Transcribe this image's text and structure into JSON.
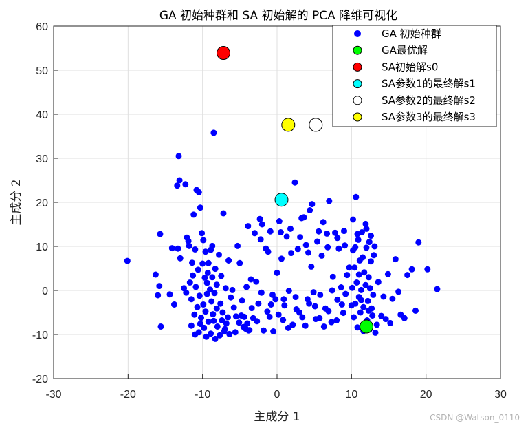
{
  "chart_data": {
    "type": "scatter",
    "title": "GA 初始种群和 SA 初始解的 PCA 降维可视化",
    "xlabel": "主成分 1",
    "ylabel": "主成分 2",
    "xlim": [
      -30,
      30
    ],
    "ylim": [
      -20,
      60
    ],
    "xticks": [
      "-30",
      "-20",
      "-10",
      "0",
      "10",
      "20",
      "30"
    ],
    "yticks": [
      "-20",
      "-10",
      "0",
      "10",
      "20",
      "30",
      "40",
      "50",
      "60"
    ],
    "grid": true,
    "legend_position": "top-right",
    "colors": {
      "ga_population": "#0000ff",
      "ga_best": "#00ff00",
      "sa_init": "#ff0000",
      "sa_s1": "#00ffff",
      "sa_s2": "#ffffff",
      "sa_s3": "#ffff00"
    },
    "series": [
      {
        "name": "GA 初始种群",
        "marker": "dot",
        "points": [
          [
            -20.1,
            6.7
          ],
          [
            -16.3,
            3.6
          ],
          [
            -16.0,
            -1.1
          ],
          [
            -15.8,
            1.0
          ],
          [
            -15.6,
            -8.2
          ],
          [
            -15.7,
            12.8
          ],
          [
            -14.4,
            -0.9
          ],
          [
            -14.1,
            9.6
          ],
          [
            -13.8,
            -3.2
          ],
          [
            -13.4,
            23.8
          ],
          [
            -13.1,
            25.0
          ],
          [
            -13.2,
            30.5
          ],
          [
            -13.0,
            7.3
          ],
          [
            -13.3,
            9.5
          ],
          [
            -12.5,
            0.5
          ],
          [
            -12.3,
            24.1
          ],
          [
            -12.1,
            12.0
          ],
          [
            -11.9,
            11.2
          ],
          [
            -11.8,
            10.1
          ],
          [
            -11.5,
            -2.0
          ],
          [
            -12.2,
            -0.5
          ],
          [
            -11.4,
            6.3
          ],
          [
            -11.2,
            17.2
          ],
          [
            -11.0,
            9.3
          ],
          [
            -10.8,
            22.8
          ],
          [
            -10.5,
            22.3
          ],
          [
            -10.3,
            18.8
          ],
          [
            -10.1,
            13.0
          ],
          [
            -9.9,
            11.4
          ],
          [
            -9.6,
            8.8
          ],
          [
            -9.4,
            1.7
          ],
          [
            -9.2,
            6.2
          ],
          [
            -8.9,
            9.2
          ],
          [
            -8.7,
            10.1
          ],
          [
            -8.5,
            35.8
          ],
          [
            -8.3,
            4.9
          ],
          [
            -8.1,
            1.3
          ],
          [
            -7.8,
            8.1
          ],
          [
            -7.5,
            3.3
          ],
          [
            -7.2,
            17.5
          ],
          [
            -6.9,
            0.5
          ],
          [
            -6.5,
            6.8
          ],
          [
            -6.2,
            -1.6
          ],
          [
            -6.0,
            0.1
          ],
          [
            -5.8,
            -3.9
          ],
          [
            -5.5,
            -5.9
          ],
          [
            -5.3,
            10.1
          ],
          [
            -5.0,
            6.2
          ],
          [
            -4.8,
            -5.7
          ],
          [
            -4.5,
            -8.3
          ],
          [
            -4.2,
            -8.7
          ],
          [
            -4.0,
            -7.5
          ],
          [
            -3.7,
            -9.0
          ],
          [
            -3.5,
            2.5
          ],
          [
            -3.2,
            -6.3
          ],
          [
            -3.0,
            13.0
          ],
          [
            -2.8,
            2.0
          ],
          [
            -2.5,
            -3.0
          ],
          [
            -2.3,
            16.2
          ],
          [
            -2.0,
            15.0
          ],
          [
            -1.8,
            -9.1
          ],
          [
            -1.5,
            9.5
          ],
          [
            -1.2,
            8.8
          ],
          [
            -1.0,
            -6.0
          ],
          [
            -0.8,
            -3.2
          ],
          [
            -0.5,
            -9.3
          ],
          [
            -0.2,
            -2.0
          ],
          [
            0.0,
            4.0
          ],
          [
            0.3,
            15.7
          ],
          [
            0.5,
            13.2
          ],
          [
            0.8,
            -6.7
          ],
          [
            1.0,
            -3.4
          ],
          [
            1.3,
            12.2
          ],
          [
            1.6,
            -0.1
          ],
          [
            1.9,
            8.5
          ],
          [
            2.1,
            -7.8
          ],
          [
            2.4,
            24.5
          ],
          [
            2.6,
            -4.3
          ],
          [
            2.8,
            9.4
          ],
          [
            3.1,
            12.1
          ],
          [
            3.4,
            -6.1
          ],
          [
            3.6,
            16.6
          ],
          [
            3.9,
            10.3
          ],
          [
            4.1,
            -2.0
          ],
          [
            4.4,
            18.2
          ],
          [
            4.6,
            5.4
          ],
          [
            4.9,
            -0.4
          ],
          [
            5.1,
            -3.6
          ],
          [
            5.4,
            11.1
          ],
          [
            5.7,
            -6.3
          ],
          [
            6.0,
            7.9
          ],
          [
            6.2,
            15.5
          ],
          [
            6.5,
            -4.1
          ],
          [
            6.8,
            9.8
          ],
          [
            7.0,
            20.3
          ],
          [
            7.3,
            -7.2
          ],
          [
            7.5,
            3.1
          ],
          [
            7.8,
            13.1
          ],
          [
            8.1,
            -2.1
          ],
          [
            8.3,
            9.5
          ],
          [
            8.6,
            0.7
          ],
          [
            8.9,
            -5.1
          ],
          [
            9.1,
            10.2
          ],
          [
            9.4,
            3.5
          ],
          [
            9.7,
            5.2
          ],
          [
            10.0,
            -3.4
          ],
          [
            10.2,
            16.1
          ],
          [
            10.5,
            9.8
          ],
          [
            10.6,
            21.2
          ],
          [
            10.8,
            12.8
          ],
          [
            11.0,
            3.6
          ],
          [
            11.3,
            -2.2
          ],
          [
            11.5,
            7.5
          ],
          [
            11.8,
            -7.4
          ],
          [
            12.0,
            14.0
          ],
          [
            12.3,
            -4.6
          ],
          [
            12.6,
            6.6
          ],
          [
            12.9,
            -1.0
          ],
          [
            13.1,
            10.0
          ],
          [
            13.4,
            -7.8
          ],
          [
            13.6,
            1.9
          ],
          [
            14.0,
            -5.8
          ],
          [
            14.3,
            -1.4
          ],
          [
            14.6,
            -6.5
          ],
          [
            14.9,
            3.7
          ],
          [
            15.2,
            -7.4
          ],
          [
            15.5,
            -1.9
          ],
          [
            15.9,
            7.1
          ],
          [
            16.3,
            -0.3
          ],
          [
            16.6,
            -5.5
          ],
          [
            17.1,
            -6.3
          ],
          [
            17.5,
            3.5
          ],
          [
            18.1,
            4.8
          ],
          [
            18.6,
            -4.6
          ],
          [
            19.0,
            10.9
          ],
          [
            20.2,
            4.8
          ],
          [
            21.5,
            0.3
          ],
          [
            -11.5,
            -8.0
          ],
          [
            -11.0,
            -10.0
          ],
          [
            -10.5,
            -9.5
          ],
          [
            -10.2,
            -6.2
          ],
          [
            -9.8,
            -8.5
          ],
          [
            -9.5,
            -10.5
          ],
          [
            -9.2,
            -7.1
          ],
          [
            -8.9,
            -9.8
          ],
          [
            -8.6,
            -5.4
          ],
          [
            -8.3,
            -11.0
          ],
          [
            -8.0,
            -8.2
          ],
          [
            -7.7,
            -10.2
          ],
          [
            -7.4,
            -6.8
          ],
          [
            -7.1,
            -9.3
          ],
          [
            -6.8,
            -7.5
          ],
          [
            -9.9,
            -3.2
          ],
          [
            -10.4,
            -1.2
          ],
          [
            -8.8,
            -2.5
          ],
          [
            -8.1,
            -4.1
          ],
          [
            -7.6,
            -3.0
          ],
          [
            -10.9,
            0.8
          ],
          [
            -9.7,
            2.9
          ],
          [
            -9.0,
            0.2
          ],
          [
            -8.4,
            -0.6
          ],
          [
            -11.3,
            3.4
          ],
          [
            -10.6,
            4.7
          ],
          [
            -10.0,
            6.1
          ],
          [
            -9.3,
            4.0
          ],
          [
            -8.7,
            3.0
          ],
          [
            -11.7,
            1.8
          ],
          [
            10.3,
            -6.1
          ],
          [
            10.8,
            -8.4
          ],
          [
            11.2,
            -5.0
          ],
          [
            11.6,
            -9.2
          ],
          [
            12.1,
            -6.8
          ],
          [
            12.4,
            -8.9
          ],
          [
            12.8,
            -5.7
          ],
          [
            13.2,
            -9.6
          ],
          [
            10.5,
            -3.0
          ],
          [
            11.0,
            -1.5
          ],
          [
            11.6,
            -3.8
          ],
          [
            12.2,
            -2.4
          ],
          [
            12.7,
            -4.1
          ],
          [
            10.1,
            0.6
          ],
          [
            10.7,
            1.8
          ],
          [
            11.3,
            0.1
          ],
          [
            11.9,
            1.2
          ],
          [
            12.5,
            0.5
          ],
          [
            10.4,
            5.2
          ],
          [
            11.1,
            6.8
          ],
          [
            11.7,
            4.1
          ],
          [
            12.3,
            3.0
          ],
          [
            10.2,
            9.1
          ],
          [
            10.9,
            11.5
          ],
          [
            11.4,
            13.2
          ],
          [
            12.0,
            9.7
          ],
          [
            12.6,
            12.4
          ],
          [
            11.9,
            15.1
          ],
          [
            12.4,
            11.0
          ],
          [
            13.0,
            8.0
          ],
          [
            2.5,
            -1.5
          ],
          [
            3.0,
            -5.0
          ],
          [
            3.8,
            -8.0
          ],
          [
            4.3,
            -3.0
          ],
          [
            5.2,
            -6.5
          ],
          [
            5.8,
            -1.0
          ],
          [
            6.3,
            -8.2
          ],
          [
            6.9,
            -4.7
          ],
          [
            7.4,
            0.0
          ],
          [
            8.0,
            -6.8
          ],
          [
            8.7,
            -3.2
          ],
          [
            9.2,
            -0.8
          ],
          [
            -1.3,
            -4.8
          ],
          [
            -0.6,
            -1.0
          ],
          [
            0.2,
            -5.5
          ],
          [
            0.9,
            -2.0
          ],
          [
            1.5,
            -8.5
          ],
          [
            -2.1,
            -0.5
          ],
          [
            -2.7,
            -7.0
          ],
          [
            -3.4,
            -4.0
          ],
          [
            -4.1,
            0.8
          ],
          [
            -4.7,
            -2.3
          ],
          [
            -5.6,
            -9.5
          ],
          [
            -6.4,
            -9.9
          ],
          [
            -3.9,
            14.6
          ],
          [
            -2.2,
            11.6
          ],
          [
            -0.9,
            13.4
          ],
          [
            0.6,
            7.2
          ],
          [
            1.8,
            14.0
          ],
          [
            3.3,
            16.4
          ],
          [
            4.7,
            19.6
          ],
          [
            5.6,
            13.4
          ],
          [
            6.7,
            12.9
          ],
          [
            8.1,
            11.9
          ],
          [
            9.0,
            13.5
          ],
          [
            4.2,
            8.6
          ],
          [
            -3.8,
            -9.1
          ],
          [
            -4.4,
            -6.0
          ],
          [
            -5.1,
            -7.3
          ],
          [
            -6.6,
            -6.1
          ],
          [
            -7.0,
            -8.8
          ],
          [
            -7.3,
            -5.0
          ],
          [
            -9.6,
            -4.8
          ],
          [
            -10.3,
            -7.6
          ],
          [
            -10.7,
            -3.8
          ],
          [
            -11.1,
            -5.5
          ],
          [
            -9.4,
            -0.8
          ],
          [
            -8.5,
            -6.9
          ]
        ]
      },
      {
        "name": "GA最优解",
        "marker": "circle",
        "points": [
          [
            12.0,
            -8.2
          ]
        ]
      },
      {
        "name": "SA初始解s0",
        "marker": "circle",
        "points": [
          [
            -7.2,
            53.9
          ]
        ]
      },
      {
        "name": "SA参数1的最终解s1",
        "marker": "circle",
        "points": [
          [
            0.6,
            20.6
          ]
        ]
      },
      {
        "name": "SA参数2的最终解s2",
        "marker": "circle",
        "points": [
          [
            5.2,
            37.6
          ]
        ]
      },
      {
        "name": "SA参数3的最终解s3",
        "marker": "circle",
        "points": [
          [
            1.5,
            37.6
          ]
        ]
      }
    ]
  },
  "watermark": "CSDN @Watson_0110"
}
